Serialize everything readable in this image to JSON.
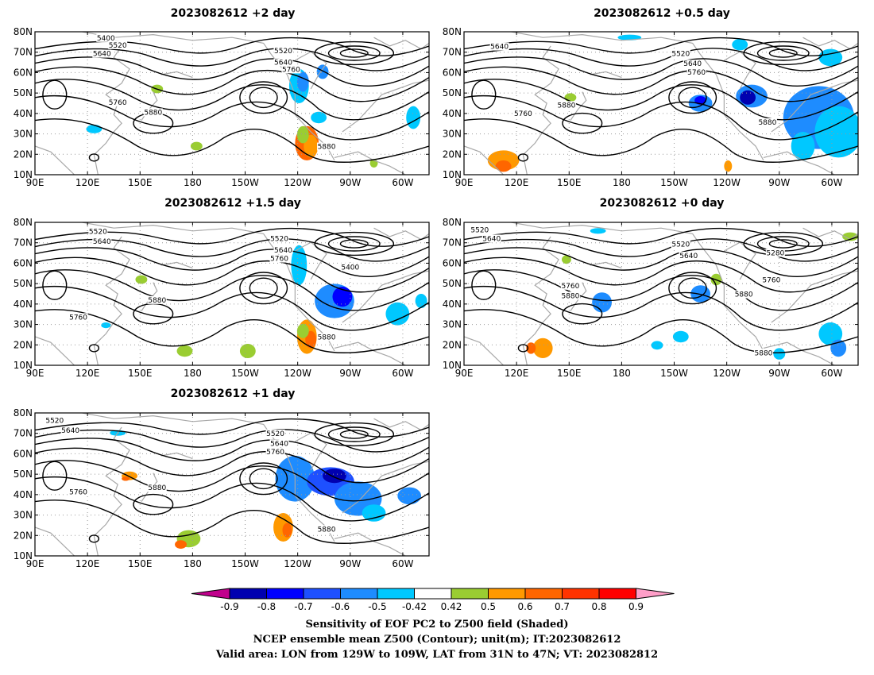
{
  "panels": [
    {
      "id": "p2d",
      "title": "2023082612 +2 day"
    },
    {
      "id": "p05d",
      "title": "2023082612 +0.5 day"
    },
    {
      "id": "p15d",
      "title": "2023082612 +1.5 day"
    },
    {
      "id": "p0d",
      "title": "2023082612 +0 day"
    },
    {
      "id": "p1d",
      "title": "2023082612 +1 day"
    }
  ],
  "axes": {
    "lon_labels": [
      "90E",
      "120E",
      "150E",
      "180",
      "150W",
      "120W",
      "90W",
      "60W"
    ],
    "lat_labels": [
      "10N",
      "20N",
      "30N",
      "40N",
      "50N",
      "60N",
      "70N",
      "80N"
    ],
    "lon_range": [
      "90E",
      "45W"
    ],
    "lat_range": [
      "10N",
      "80N"
    ]
  },
  "contour_labels": {
    "p2d": [
      "5400",
      "5520",
      "5640",
      "5520",
      "5640",
      "5760",
      "5760",
      "5880",
      "5880"
    ],
    "p05d": [
      "5640",
      "5520",
      "5640",
      "5760",
      "5760",
      "5880",
      "5880"
    ],
    "p15d": [
      "5520",
      "5640",
      "5520",
      "5640",
      "5760",
      "5400",
      "5760",
      "5880",
      "5880"
    ],
    "p0d": [
      "5520",
      "5640",
      "5520",
      "5640",
      "5280",
      "5760",
      "5880",
      "5760",
      "5880",
      "5880"
    ],
    "p1d": [
      "5520",
      "5640",
      "5520",
      "5640",
      "5760",
      "5760",
      "5880",
      "5880"
    ]
  },
  "colorbar": {
    "levels": [
      "-0.9",
      "-0.8",
      "-0.7",
      "-0.6",
      "-0.5",
      "-0.42",
      "0.42",
      "0.5",
      "0.6",
      "0.7",
      "0.8",
      "0.9"
    ],
    "colors": [
      "#c0008c",
      "#0000b0",
      "#0000ff",
      "#1e50ff",
      "#1e8cff",
      "#00c8ff",
      "#ffffff",
      "#9acd32",
      "#ff9900",
      "#ff6600",
      "#ff3300",
      "#ff0000",
      "#ff9ec8"
    ]
  },
  "caption": {
    "line1": "Sensitivity of EOF PC2 to Z500 field (Shaded)",
    "line2": "NCEP ensemble mean Z500 (Contour); unit(m); IT:2023082612",
    "line3": "Valid area: LON from 129W to 109W, LAT from 31N to 47N; VT: 2023082812"
  },
  "colors": {
    "contour": "#000000",
    "coast": "#a8a8a8",
    "grid": "#999999"
  }
}
